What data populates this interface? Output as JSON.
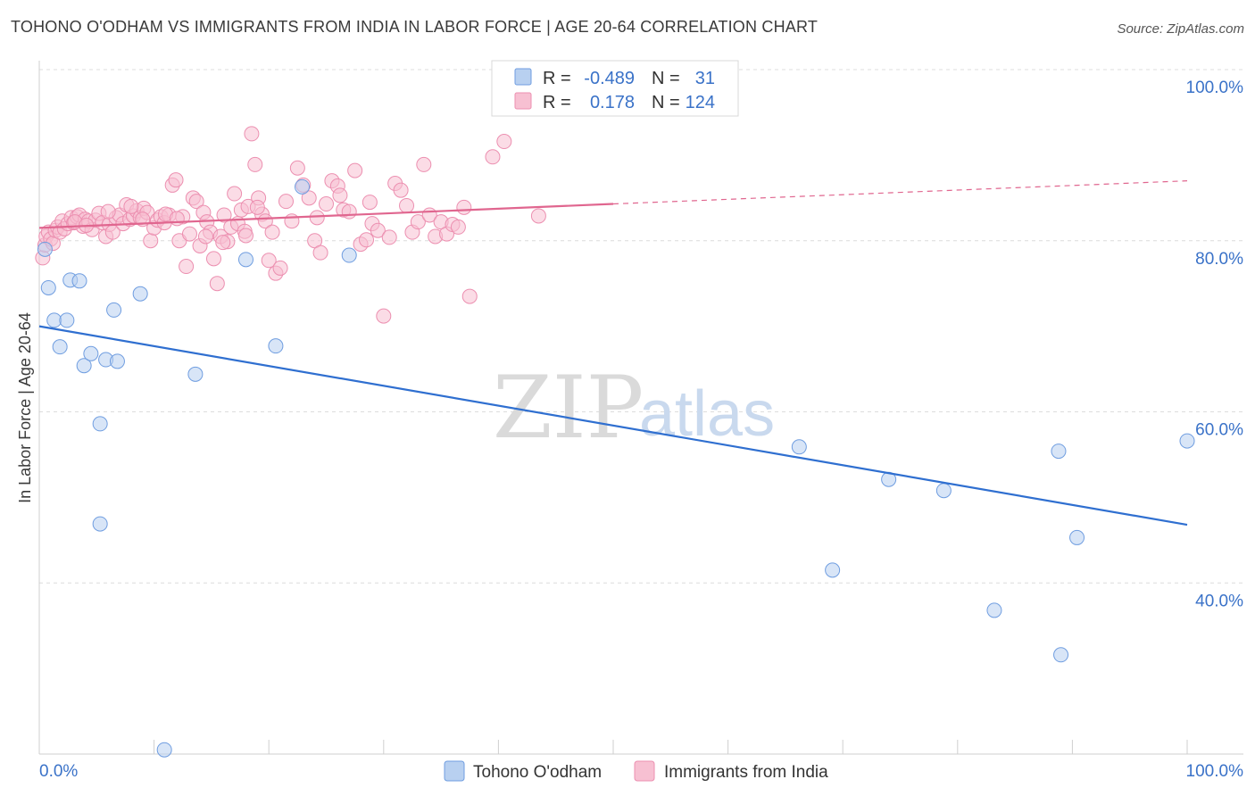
{
  "title": "TOHONO O'ODHAM VS IMMIGRANTS FROM INDIA IN LABOR FORCE | AGE 20-64 CORRELATION CHART",
  "source": "Source: ZipAtlas.com",
  "watermark": {
    "zip": "ZIP",
    "atlas": "atlas"
  },
  "stats": {
    "series1": {
      "r_label": "R =",
      "r_value": "-0.489",
      "n_label": "N =",
      "n_value": "31"
    },
    "series2": {
      "r_label": "R =",
      "r_value": "0.178",
      "n_label": "N =",
      "n_value": "124"
    }
  },
  "colors": {
    "blue_fill": "#b8d0f0",
    "blue_stroke": "#6f9de0",
    "blue_line": "#2f6fd0",
    "pink_fill": "#f7c0d2",
    "pink_stroke": "#ec8fb0",
    "pink_line": "#e0668f",
    "grid": "#dcdcdc",
    "tick_text": "#3a72c8"
  },
  "chart_data": {
    "type": "scatter",
    "ylabel": "In Labor Force | Age 20-64",
    "xlabel": "",
    "xlim": [
      0,
      100
    ],
    "ylim": [
      20,
      100
    ],
    "y_ticks": [
      {
        "value": 100,
        "label": "100.0%"
      },
      {
        "value": 80,
        "label": "80.0%"
      },
      {
        "value": 60,
        "label": "60.0%"
      },
      {
        "value": 40,
        "label": "40.0%"
      }
    ],
    "x_tick_labels": [
      {
        "value": 0,
        "label": "0.0%"
      },
      {
        "value": 100,
        "label": "100.0%"
      }
    ],
    "x_minor_ticks": [
      0,
      10,
      20,
      30,
      40,
      50,
      60,
      70,
      80,
      90,
      100
    ],
    "grid": true,
    "series": [
      {
        "name": "Tohono O'odham",
        "trend": {
          "x": [
            0,
            100
          ],
          "y": [
            70.0,
            46.8
          ]
        },
        "points": [
          [
            0.5,
            79.0
          ],
          [
            0.8,
            74.5
          ],
          [
            1.3,
            70.7
          ],
          [
            1.8,
            67.6
          ],
          [
            2.4,
            70.7
          ],
          [
            2.7,
            75.4
          ],
          [
            3.5,
            75.3
          ],
          [
            3.9,
            65.4
          ],
          [
            4.5,
            66.8
          ],
          [
            5.3,
            58.6
          ],
          [
            5.3,
            46.9
          ],
          [
            5.8,
            66.1
          ],
          [
            6.5,
            71.9
          ],
          [
            6.8,
            65.9
          ],
          [
            8.8,
            73.8
          ],
          [
            10.9,
            20.5
          ],
          [
            13.6,
            64.4
          ],
          [
            18.0,
            77.8
          ],
          [
            20.6,
            67.7
          ],
          [
            22.9,
            86.3
          ],
          [
            27.0,
            78.3
          ],
          [
            46.8,
            100.0
          ],
          [
            66.2,
            55.9
          ],
          [
            69.1,
            41.5
          ],
          [
            74.0,
            52.1
          ],
          [
            78.8,
            50.8
          ],
          [
            83.2,
            36.8
          ],
          [
            88.8,
            55.4
          ],
          [
            89.0,
            31.6
          ],
          [
            90.4,
            45.3
          ],
          [
            100.0,
            56.6
          ]
        ]
      },
      {
        "name": "Immigrants from India",
        "trend": {
          "x": [
            0,
            50
          ],
          "y": [
            81.5,
            84.3
          ]
        },
        "trend_dashed": {
          "x": [
            50,
            100
          ],
          "y": [
            84.3,
            87.0
          ]
        },
        "points": [
          [
            0.3,
            78.0
          ],
          [
            0.5,
            79.5
          ],
          [
            0.6,
            80.5
          ],
          [
            0.8,
            81.0
          ],
          [
            1.0,
            80.2
          ],
          [
            1.2,
            79.7
          ],
          [
            1.4,
            81.2
          ],
          [
            1.6,
            81.6
          ],
          [
            1.8,
            81.0
          ],
          [
            2.0,
            82.3
          ],
          [
            2.2,
            81.4
          ],
          [
            2.5,
            82.0
          ],
          [
            2.8,
            82.7
          ],
          [
            3.0,
            82.1
          ],
          [
            3.3,
            82.8
          ],
          [
            3.5,
            83.0
          ],
          [
            3.8,
            81.7
          ],
          [
            4.0,
            82.5
          ],
          [
            4.3,
            82.3
          ],
          [
            4.6,
            81.3
          ],
          [
            4.9,
            82.4
          ],
          [
            5.2,
            83.2
          ],
          [
            5.5,
            82.1
          ],
          [
            5.8,
            80.5
          ],
          [
            6.1,
            81.9
          ],
          [
            6.4,
            81.0
          ],
          [
            6.7,
            82.7
          ],
          [
            7.0,
            83.0
          ],
          [
            7.3,
            82.0
          ],
          [
            7.6,
            84.2
          ],
          [
            7.9,
            82.5
          ],
          [
            8.2,
            82.9
          ],
          [
            8.5,
            83.5
          ],
          [
            8.8,
            82.7
          ],
          [
            9.1,
            83.8
          ],
          [
            9.4,
            83.3
          ],
          [
            9.7,
            80.0
          ],
          [
            10.0,
            81.5
          ],
          [
            10.3,
            82.4
          ],
          [
            10.6,
            82.8
          ],
          [
            10.9,
            82.1
          ],
          [
            11.3,
            83.0
          ],
          [
            11.6,
            86.5
          ],
          [
            11.9,
            87.1
          ],
          [
            12.2,
            80.0
          ],
          [
            12.5,
            82.8
          ],
          [
            12.8,
            77.0
          ],
          [
            13.1,
            80.8
          ],
          [
            13.4,
            85.0
          ],
          [
            13.7,
            84.6
          ],
          [
            14.0,
            79.4
          ],
          [
            14.3,
            83.3
          ],
          [
            14.6,
            82.2
          ],
          [
            14.9,
            81.0
          ],
          [
            15.2,
            77.9
          ],
          [
            15.5,
            75.0
          ],
          [
            15.8,
            80.5
          ],
          [
            16.1,
            83.0
          ],
          [
            16.4,
            79.9
          ],
          [
            16.7,
            81.6
          ],
          [
            17.0,
            85.5
          ],
          [
            17.3,
            82.0
          ],
          [
            17.6,
            83.6
          ],
          [
            17.9,
            81.1
          ],
          [
            18.2,
            84.0
          ],
          [
            18.5,
            92.5
          ],
          [
            18.8,
            88.9
          ],
          [
            19.1,
            85.0
          ],
          [
            19.4,
            83.1
          ],
          [
            19.7,
            82.3
          ],
          [
            20.0,
            77.7
          ],
          [
            20.3,
            81.0
          ],
          [
            20.6,
            76.2
          ],
          [
            21.0,
            76.8
          ],
          [
            21.5,
            84.6
          ],
          [
            22.0,
            82.3
          ],
          [
            22.5,
            88.5
          ],
          [
            23.0,
            86.5
          ],
          [
            23.5,
            85.0
          ],
          [
            24.0,
            80.0
          ],
          [
            24.5,
            78.6
          ],
          [
            25.0,
            84.3
          ],
          [
            25.5,
            87.0
          ],
          [
            26.0,
            86.4
          ],
          [
            26.5,
            83.6
          ],
          [
            27.0,
            83.4
          ],
          [
            27.5,
            88.2
          ],
          [
            28.0,
            79.6
          ],
          [
            28.5,
            80.1
          ],
          [
            29.0,
            82.0
          ],
          [
            29.5,
            81.2
          ],
          [
            30.0,
            71.2
          ],
          [
            30.5,
            80.4
          ],
          [
            31.0,
            86.7
          ],
          [
            31.5,
            85.9
          ],
          [
            32.0,
            84.1
          ],
          [
            32.5,
            81.0
          ],
          [
            33.0,
            82.2
          ],
          [
            33.5,
            88.9
          ],
          [
            34.0,
            83.0
          ],
          [
            34.5,
            80.5
          ],
          [
            35.0,
            82.2
          ],
          [
            35.5,
            80.8
          ],
          [
            36.0,
            81.9
          ],
          [
            36.5,
            81.6
          ],
          [
            37.0,
            83.9
          ],
          [
            37.5,
            73.5
          ],
          [
            39.5,
            89.8
          ],
          [
            40.5,
            91.6
          ],
          [
            43.5,
            82.9
          ],
          [
            3.1,
            82.2
          ],
          [
            4.1,
            81.8
          ],
          [
            6.0,
            83.4
          ],
          [
            8.0,
            84.0
          ],
          [
            9.0,
            82.5
          ],
          [
            11.0,
            83.1
          ],
          [
            12.0,
            82.6
          ],
          [
            14.5,
            80.5
          ],
          [
            16.0,
            79.8
          ],
          [
            18.0,
            80.6
          ],
          [
            19.0,
            83.9
          ],
          [
            24.2,
            82.7
          ],
          [
            26.2,
            85.3
          ],
          [
            28.8,
            84.5
          ]
        ]
      }
    ]
  },
  "legend": {
    "items": [
      {
        "label": "Tohono O'odham"
      },
      {
        "label": "Immigrants from India"
      }
    ]
  }
}
